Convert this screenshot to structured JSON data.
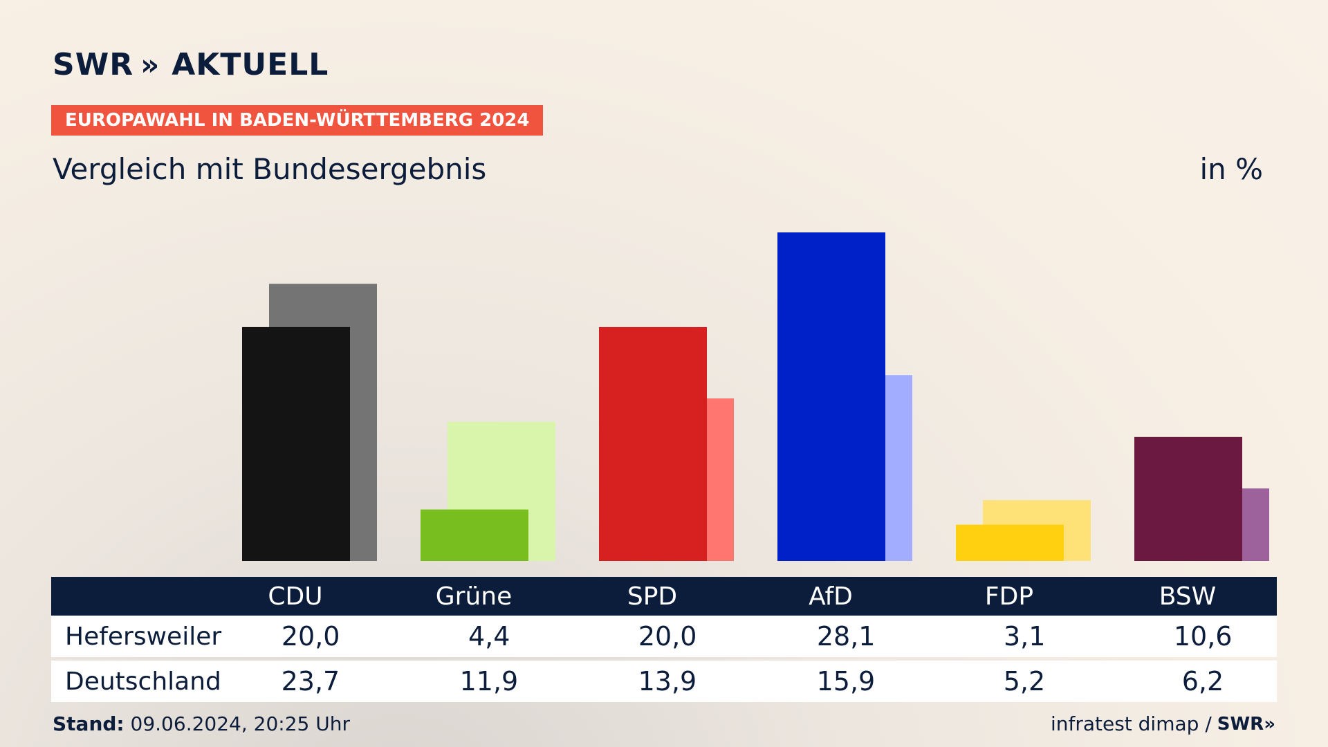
{
  "brand": {
    "logo_text": "SWR",
    "logo_suffix": "AKTUELL",
    "chevrons": "»"
  },
  "badge": "EUROPAWAHL IN BADEN-WÜRTTEMBERG 2024",
  "subtitle": "Vergleich mit Bundesergebnis",
  "unit": "in %",
  "footer": {
    "stand_label": "Stand:",
    "stand_value": "09.06.2024, 20:25 Uhr",
    "source": "infratest dimap /",
    "source_brand": "SWR»"
  },
  "chart_data": {
    "type": "bar",
    "categories": [
      "CDU",
      "Grüne",
      "SPD",
      "AfD",
      "FDP",
      "BSW"
    ],
    "series": [
      {
        "name": "Hefersweiler",
        "values": [
          20.0,
          4.4,
          20.0,
          28.1,
          3.1,
          10.6
        ],
        "colors": [
          "#141414",
          "#78be1e",
          "#d72020",
          "#0021c8",
          "#ffd00f",
          "#6b1941"
        ]
      },
      {
        "name": "Deutschland",
        "values": [
          23.7,
          11.9,
          13.9,
          15.9,
          5.2,
          6.2
        ],
        "colors": [
          "#747474",
          "#d8f5ab",
          "#ff7570",
          "#a2adff",
          "#ffe277",
          "#9d629b"
        ]
      }
    ],
    "ylim": [
      0,
      28.1
    ],
    "table": {
      "rows": [
        {
          "label": "Hefersweiler",
          "values": [
            "20,0",
            "4,4",
            "20,0",
            "28,1",
            "3,1",
            "10,6"
          ]
        },
        {
          "label": "Deutschland",
          "values": [
            "23,7",
            "11,9",
            "13,9",
            "15,9",
            "5,2",
            "6,2"
          ]
        }
      ]
    }
  }
}
